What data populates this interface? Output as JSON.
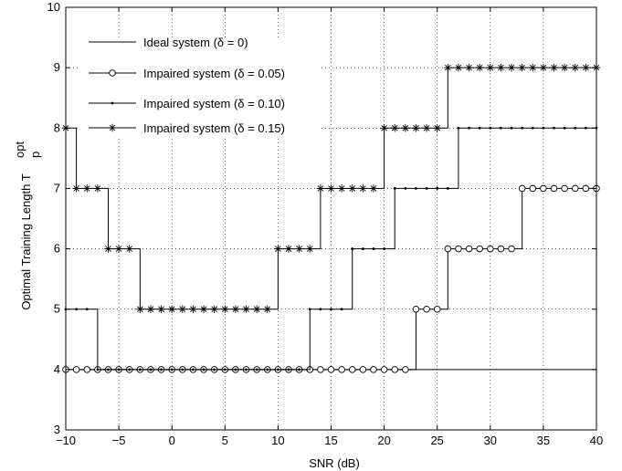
{
  "chart_data": {
    "type": "line",
    "title": "",
    "xlabel": "SNR (dB)",
    "ylabel_main": "Optimal Training Length T",
    "ylabel_sub": "p",
    "ylabel_sup": "opt",
    "xlim": [
      -10,
      40
    ],
    "ylim": [
      3,
      10
    ],
    "xticks": [
      -10,
      -5,
      0,
      5,
      10,
      15,
      20,
      25,
      30,
      35,
      40
    ],
    "yticks": [
      3,
      4,
      5,
      6,
      7,
      8,
      9,
      10
    ],
    "xtick_labels": [
      "−10",
      "−5",
      "0",
      "5",
      "10",
      "15",
      "20",
      "25",
      "30",
      "35",
      "40"
    ],
    "ytick_labels": [
      "3",
      "4",
      "5",
      "6",
      "7",
      "8",
      "9",
      "10"
    ],
    "grid": true,
    "legend_position": "top-left",
    "x": [
      -10,
      -9,
      -8,
      -7,
      -6,
      -5,
      -4,
      -3,
      -2,
      -1,
      0,
      1,
      2,
      3,
      4,
      5,
      6,
      7,
      8,
      9,
      10,
      11,
      12,
      13,
      14,
      15,
      16,
      17,
      18,
      19,
      20,
      21,
      22,
      23,
      24,
      25,
      26,
      27,
      28,
      29,
      30,
      31,
      32,
      33,
      34,
      35,
      36,
      37,
      38,
      39,
      40
    ],
    "series": [
      {
        "name": "Ideal system (δ = 0)",
        "marker": "none",
        "values": [
          4,
          4,
          4,
          4,
          4,
          4,
          4,
          4,
          4,
          4,
          4,
          4,
          4,
          4,
          4,
          4,
          4,
          4,
          4,
          4,
          4,
          4,
          4,
          4,
          4,
          4,
          4,
          4,
          4,
          4,
          4,
          4,
          4,
          4,
          4,
          4,
          4,
          4,
          4,
          4,
          4,
          4,
          4,
          4,
          4,
          4,
          4,
          4,
          4,
          4,
          4
        ]
      },
      {
        "name": "Impaired system (δ = 0.05)",
        "marker": "circle",
        "values": [
          4,
          4,
          4,
          4,
          4,
          4,
          4,
          4,
          4,
          4,
          4,
          4,
          4,
          4,
          4,
          4,
          4,
          4,
          4,
          4,
          4,
          4,
          4,
          4,
          4,
          4,
          4,
          4,
          4,
          4,
          4,
          4,
          4,
          5,
          5,
          5,
          6,
          6,
          6,
          6,
          6,
          6,
          6,
          7,
          7,
          7,
          7,
          7,
          7,
          7,
          7
        ]
      },
      {
        "name": "Impaired system (δ = 0.10)",
        "marker": "dot",
        "values": [
          5,
          5,
          5,
          4,
          4,
          4,
          4,
          4,
          4,
          4,
          4,
          4,
          4,
          4,
          4,
          4,
          4,
          4,
          4,
          4,
          4,
          4,
          4,
          5,
          5,
          5,
          5,
          6,
          6,
          6,
          6,
          7,
          7,
          7,
          7,
          7,
          7,
          8,
          8,
          8,
          8,
          8,
          8,
          8,
          8,
          8,
          8,
          8,
          8,
          8,
          8
        ]
      },
      {
        "name": "Impaired system (δ = 0.15)",
        "marker": "asterisk",
        "values": [
          8,
          7,
          7,
          7,
          6,
          6,
          6,
          5,
          5,
          5,
          5,
          5,
          5,
          5,
          5,
          5,
          5,
          5,
          5,
          5,
          6,
          6,
          6,
          6,
          7,
          7,
          7,
          7,
          7,
          7,
          8,
          8,
          8,
          8,
          8,
          8,
          9,
          9,
          9,
          9,
          9,
          9,
          9,
          9,
          9,
          9,
          9,
          9,
          9,
          9,
          9
        ]
      }
    ]
  }
}
